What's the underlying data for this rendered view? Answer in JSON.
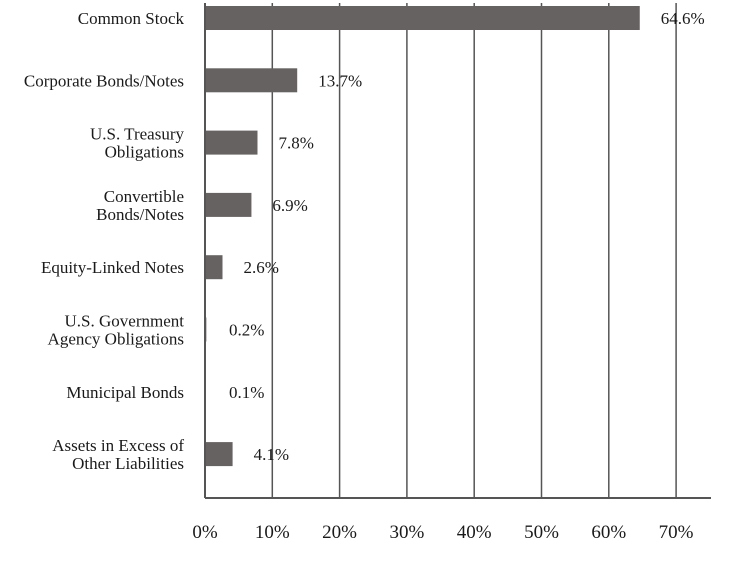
{
  "chart_data": {
    "type": "bar",
    "orientation": "horizontal",
    "categories": [
      [
        "Common Stock"
      ],
      [
        "Corporate Bonds/Notes"
      ],
      [
        "U.S. Treasury",
        "Obligations"
      ],
      [
        "Convertible",
        "Bonds/Notes"
      ],
      [
        "Equity-Linked Notes"
      ],
      [
        "U.S. Government",
        "Agency Obligations"
      ],
      [
        "Municipal Bonds"
      ],
      [
        "Assets in Excess of",
        "Other Liabilities"
      ]
    ],
    "values": [
      64.6,
      13.7,
      7.8,
      6.9,
      2.6,
      0.2,
      0.1,
      4.1
    ],
    "value_labels": [
      "64.6%",
      "13.7%",
      "7.8%",
      "6.9%",
      "2.6%",
      "0.2%",
      "0.1%",
      "4.1%"
    ],
    "xlim": [
      0,
      75
    ],
    "x_ticks": [
      0,
      10,
      20,
      30,
      40,
      50,
      60,
      70
    ],
    "x_tick_labels": [
      "0%",
      "10%",
      "20%",
      "30%",
      "40%",
      "50%",
      "60%",
      "70%"
    ],
    "title": "",
    "xlabel": "",
    "ylabel": "",
    "grid": "vertical",
    "legend": "none",
    "bar_color": "#666262"
  }
}
